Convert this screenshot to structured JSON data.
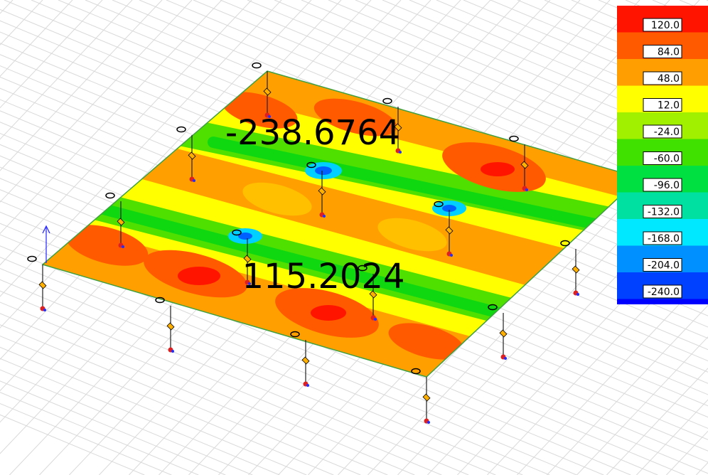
{
  "legend": {
    "entries": [
      {
        "label": "120.0",
        "color": "#ff1400"
      },
      {
        "label": "84.0",
        "color": "#ff5a00"
      },
      {
        "label": "48.0",
        "color": "#ff9e00"
      },
      {
        "label": "12.0",
        "color": "#ffff00"
      },
      {
        "label": "-24.0",
        "color": "#a0f000"
      },
      {
        "label": "-60.0",
        "color": "#40e000"
      },
      {
        "label": "-96.0",
        "color": "#00e040"
      },
      {
        "label": "-132.0",
        "color": "#00e0a0"
      },
      {
        "label": "-168.0",
        "color": "#00e8ff"
      },
      {
        "label": "-204.0",
        "color": "#0090ff"
      },
      {
        "label": "-240.0",
        "color": "#0040ff"
      }
    ]
  },
  "annotations": {
    "min_label": "-238.6764",
    "max_label": "115.2024"
  }
}
